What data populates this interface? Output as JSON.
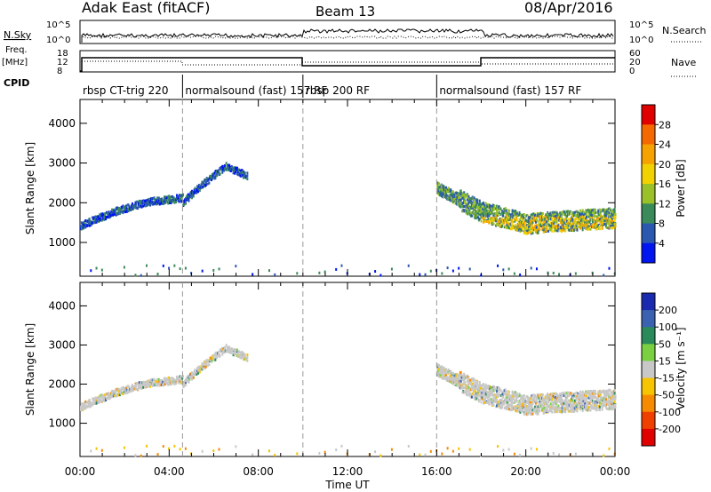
{
  "header": {
    "site": "Adak East (fitACF)",
    "beam": "Beam 13",
    "date": "08/Apr/2016"
  },
  "strip_labels": {
    "nsky": "N.Sky",
    "nsky_ticks": [
      "10^5",
      "10^0"
    ],
    "nsearch": "N.Search",
    "nsearch_ticks": [
      "10^5",
      "10^0"
    ],
    "freq_top": "Freq.",
    "freq_unit": "[MHz]",
    "freq_ticks": [
      "18",
      "12",
      "8"
    ],
    "nave": "Nave",
    "nave_ticks": [
      "60",
      "20",
      "0"
    ],
    "cpid": "CPID"
  },
  "cpid_segments": [
    {
      "label": "rbsp CT-trig 220",
      "start_h": 0,
      "end_h": 4.6
    },
    {
      "label": "normalsound (fast) 157 RF",
      "start_h": 4.6,
      "end_h": 10.0
    },
    {
      "label": "rbsp 200 RF",
      "start_h": 10.0,
      "end_h": 16.0
    },
    {
      "label": "normalsound (fast) 157 RF",
      "start_h": 16.0,
      "end_h": 24.0
    }
  ],
  "chart_data": [
    {
      "type": "heatmap",
      "panel": "power",
      "ylabel": "Slant Range [km]",
      "xlabel": "Time UT",
      "xlim": [
        0,
        24
      ],
      "ylim": [
        150,
        4600
      ],
      "yticks": [
        1000,
        2000,
        3000,
        4000
      ],
      "xticklabels": [
        "00:00",
        "04:00",
        "08:00",
        "12:00",
        "16:00",
        "20:00",
        "00:00"
      ],
      "colorbar": {
        "label": "Power [dB]",
        "ticks": [
          "28",
          "24",
          "20",
          "16",
          "12",
          "8",
          "4"
        ],
        "colors": [
          "#e00000",
          "#f46a00",
          "#f6a200",
          "#f2d100",
          "#9ac02a",
          "#3a8a5a",
          "#2a58b0",
          "#0015f0"
        ]
      },
      "echo_bands": [
        {
          "t": [
            0.0,
            1.5,
            3.0,
            4.6
          ],
          "range_km": [
            1450,
            1800,
            2050,
            2150
          ]
        },
        {
          "t": [
            4.6,
            5.5,
            6.5,
            7.5
          ],
          "range_km": [
            2050,
            2500,
            2950,
            2700
          ]
        },
        {
          "t": [
            16.0,
            18.0,
            20.0,
            24.0
          ],
          "range_km": [
            2400,
            1800,
            1500,
            1650
          ]
        }
      ]
    },
    {
      "type": "heatmap",
      "panel": "velocity",
      "ylabel": "Slant Range [km]",
      "xlabel": "Time UT",
      "xlim": [
        0,
        24
      ],
      "ylim": [
        150,
        4600
      ],
      "yticks": [
        1000,
        2000,
        3000,
        4000
      ],
      "xticklabels": [
        "00:00",
        "04:00",
        "08:00",
        "12:00",
        "16:00",
        "20:00",
        "00:00"
      ],
      "colorbar": {
        "label": "Velocity [m s⁻¹]",
        "ticks": [
          "200",
          "100",
          "50",
          "15",
          "-15",
          "-50",
          "-100",
          "-200"
        ],
        "colors": [
          "#1a2ab0",
          "#3a62b0",
          "#2a8a5a",
          "#7ad040",
          "#c8c8c8",
          "#f6c400",
          "#f68a00",
          "#f04000",
          "#e00000"
        ]
      }
    }
  ],
  "x_axis_title": "Time UT"
}
